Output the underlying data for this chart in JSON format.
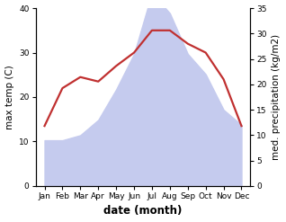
{
  "months": [
    "Jan",
    "Feb",
    "Mar",
    "Apr",
    "May",
    "Jun",
    "Jul",
    "Aug",
    "Sep",
    "Oct",
    "Nov",
    "Dec"
  ],
  "month_indices": [
    0,
    1,
    2,
    3,
    4,
    5,
    6,
    7,
    8,
    9,
    10,
    11
  ],
  "precipitation": [
    9,
    9,
    10,
    13,
    19,
    26,
    38,
    34,
    26,
    22,
    15,
    12
  ],
  "temperature": [
    13.5,
    22,
    24.5,
    23.5,
    27,
    30,
    35,
    35,
    32,
    30,
    24,
    13.5
  ],
  "precip_fill_color": "#c5cbee",
  "temp_color": "#c03030",
  "temp_linewidth": 1.6,
  "left_ylim": [
    0,
    40
  ],
  "right_ylim": [
    0,
    35
  ],
  "left_yticks": [
    0,
    10,
    20,
    30,
    40
  ],
  "right_yticks": [
    0,
    5,
    10,
    15,
    20,
    25,
    30,
    35
  ],
  "left_ylabel": "max temp (C)",
  "right_ylabel": "med. precipitation (kg/m2)",
  "xlabel": "date (month)",
  "xlabel_fontsize": 8.5,
  "ylabel_fontsize": 7.5,
  "tick_fontsize": 6.5,
  "background_color": "#ffffff"
}
